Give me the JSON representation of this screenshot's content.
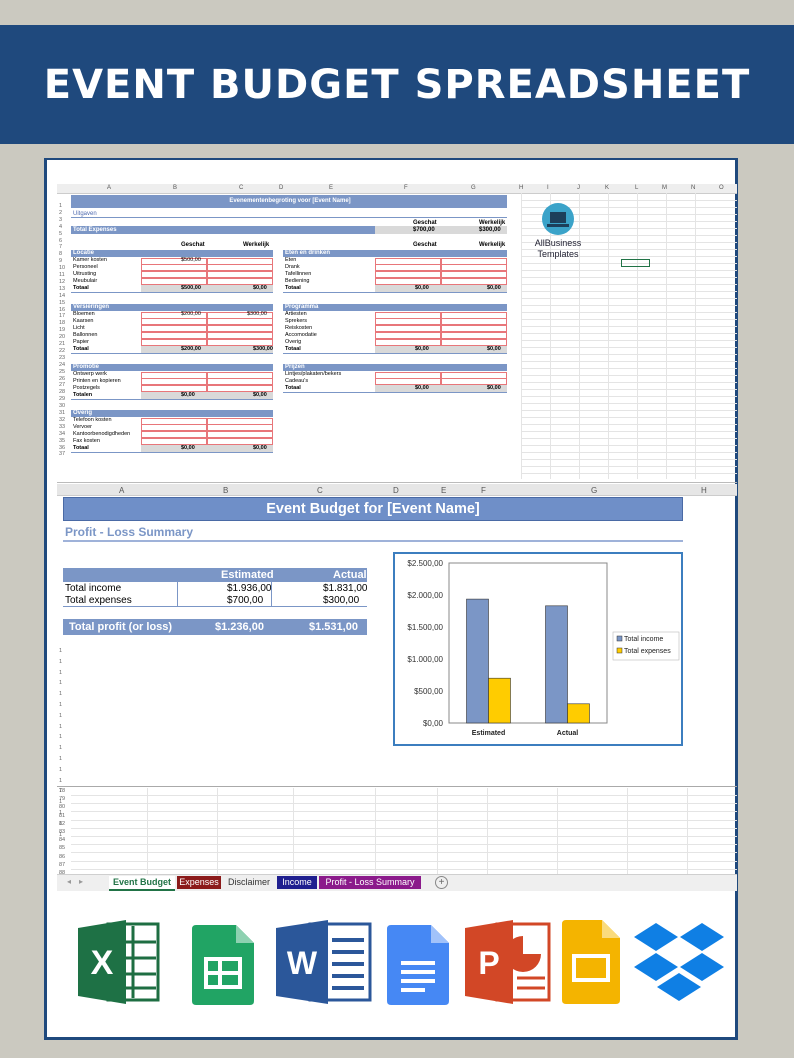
{
  "page": {
    "title": "EVENT BUDGET SPREADSHEET"
  },
  "sheet1": {
    "col_letters": [
      "A",
      "B",
      "C",
      "D",
      "E",
      "F",
      "G",
      "H",
      "I",
      "J",
      "K",
      "L",
      "M",
      "N",
      "O"
    ],
    "title_bar": "Evenementenbegroting voor [Event Name]",
    "uitgaven": "Uitgaven",
    "total_expenses_label": "Total Expenses",
    "gheader_geschat": "Geschat",
    "gheader_werkelijk": "Werkelijk",
    "total_expenses_geschat": "$700,00",
    "total_expenses_werkelijk": "$300,00",
    "logo_line1": "AllBusiness",
    "logo_line2": "Templates",
    "sections_left": [
      {
        "name": "Locatie",
        "items": [
          "Kamer kosten",
          "Personeel",
          "Uitrusting",
          "Meubulair"
        ],
        "first_geschat": "$500,00",
        "first_werkelijk": "",
        "total_label": "Totaal",
        "total_geschat": "$500,00",
        "total_werkelijk": "$0,00"
      },
      {
        "name": "Versieringen",
        "items": [
          "Bloemen",
          "Kaarsen",
          "Licht",
          "Ballonnen",
          "Papier"
        ],
        "first_geschat": "$200,00",
        "first_werkelijk": "$300,00",
        "total_label": "Totaal",
        "total_geschat": "$200,00",
        "total_werkelijk": "$300,00"
      },
      {
        "name": "Promotie",
        "items": [
          "Ontwerp werk",
          "Printen en kopieren",
          "Postzegels"
        ],
        "first_geschat": "",
        "first_werkelijk": "",
        "total_label": "Totalen",
        "total_geschat": "$0,00",
        "total_werkelijk": "$0,00"
      },
      {
        "name": "Overig",
        "items": [
          "Telefoon kosten",
          "Vervoer",
          "Kantoorbenodigdheden",
          "Fax kosten"
        ],
        "first_geschat": "",
        "first_werkelijk": "",
        "total_label": "Totaal",
        "total_geschat": "$0,00",
        "total_werkelijk": "$0,00"
      }
    ],
    "sections_right": [
      {
        "name": "Eten en drinken",
        "items": [
          "Eten",
          "Drank",
          "Tafellinnen",
          "Bediening"
        ],
        "total_label": "Totaal",
        "total_geschat": "$0,00",
        "total_werkelijk": "$0,00"
      },
      {
        "name": "Programma",
        "items": [
          "Artiesten",
          "Sprekers",
          "Reiskosten",
          "Accomodatie",
          "Overig"
        ],
        "total_label": "Totaal",
        "total_geschat": "$0,00",
        "total_werkelijk": "$0,00"
      },
      {
        "name": "Prijzen",
        "items": [
          "Lintjes/plakaten/bekers",
          "Cadeau's"
        ],
        "total_label": "Totaal",
        "total_geschat": "$0,00",
        "total_werkelijk": "$0,00"
      }
    ]
  },
  "sheet2": {
    "col_letters": [
      "A",
      "B",
      "C",
      "D",
      "E",
      "F",
      "G",
      "H"
    ],
    "title": "Event Budget for [Event Name]",
    "subtitle": "Profit - Loss Summary",
    "col_estimated": "Estimated",
    "col_actual": "Actual",
    "rows": [
      {
        "label": "Total income",
        "estimated": "$1.936,00",
        "actual": "$1.831,00"
      },
      {
        "label": "Total expenses",
        "estimated": "$700,00",
        "actual": "$300,00"
      }
    ],
    "profit_label": "Total profit (or loss)",
    "profit_estimated": "$1.236,00",
    "profit_actual": "$1.531,00",
    "bottom_rows": [
      "78",
      "79",
      "80",
      "81",
      "82",
      "83",
      "84",
      "85",
      "86",
      "87",
      "88"
    ]
  },
  "chart_data": {
    "type": "bar",
    "categories": [
      "Estimated",
      "Actual"
    ],
    "series": [
      {
        "name": "Total income",
        "values": [
          1936,
          1831
        ],
        "color": "#7b96c6"
      },
      {
        "name": "Total expenses",
        "values": [
          700,
          300
        ],
        "color": "#ffcc00"
      }
    ],
    "ylim": [
      0,
      2500
    ],
    "yticks": [
      "$2.500,00",
      "$2.000,00",
      "$1.500,00",
      "$1.000,00",
      "$500,00",
      "$0,00"
    ],
    "legend": "right",
    "grid": false
  },
  "tabs": {
    "items": [
      {
        "label": "Event Budget",
        "color": "#ffffff",
        "text": "#217346"
      },
      {
        "label": "Expenses",
        "color": "#8b1a1a",
        "text": "#ffffff"
      },
      {
        "label": "Disclaimer",
        "color": "#efefef",
        "text": "#333333"
      },
      {
        "label": "Income",
        "color": "#1f1f8f",
        "text": "#ffffff"
      },
      {
        "label": "Profit - Loss Summary",
        "color": "#8b1a8b",
        "text": "#ffffff"
      }
    ],
    "add_symbol": "+"
  },
  "app_icons": [
    "excel-icon",
    "google-sheets-icon",
    "word-icon",
    "google-docs-icon",
    "powerpoint-icon",
    "google-slides-icon",
    "dropbox-icon"
  ],
  "colors": {
    "header_bg": "#1f497d",
    "band": "#7b96c6"
  }
}
